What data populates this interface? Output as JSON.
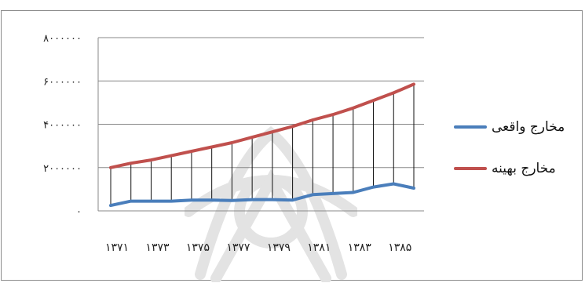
{
  "chart_data": {
    "type": "line",
    "x": [
      "۱۳۷۱",
      "۱۳۷۲",
      "۱۳۷۳",
      "۱۳۷۴",
      "۱۳۷۵",
      "۱۳۷۶",
      "۱۳۷۷",
      "۱۳۷۸",
      "۱۳۷۹",
      "۱۳۸۰",
      "۱۳۸۱",
      "۱۳۸۲",
      "۱۳۸۳",
      "۱۳۸۴",
      "۱۳۸۵",
      "۱۳۸۶"
    ],
    "x_tick_labels": [
      "۱۳۷۱",
      "۱۳۷۳",
      "۱۳۷۵",
      "۱۳۷۷",
      "۱۳۷۹",
      "۱۳۸۱",
      "۱۳۸۳",
      "۱۳۸۵"
    ],
    "y_tick_labels": [
      "۰",
      "۲۰۰۰۰۰۰",
      "۴۰۰۰۰۰۰",
      "۶۰۰۰۰۰۰",
      "۸۰۰۰۰۰۰"
    ],
    "y_ticks": [
      0,
      2000000,
      4000000,
      6000000,
      8000000
    ],
    "ylim": [
      0,
      8000000
    ],
    "grid": "horizontal lines at y ticks; vertical drop lines at each x",
    "legend_position": "right",
    "series": [
      {
        "name": "مخارج واقعی",
        "color": "#4a7ebb",
        "values": [
          250000,
          450000,
          450000,
          450000,
          500000,
          500000,
          480000,
          520000,
          520000,
          500000,
          750000,
          800000,
          850000,
          1100000,
          1250000,
          1050000
        ]
      },
      {
        "name": "مخارج بهینه",
        "color": "#c0504d",
        "values": [
          2000000,
          2200000,
          2350000,
          2550000,
          2750000,
          2950000,
          3150000,
          3400000,
          3650000,
          3900000,
          4200000,
          4450000,
          4750000,
          5100000,
          5450000,
          5850000
        ]
      }
    ]
  }
}
